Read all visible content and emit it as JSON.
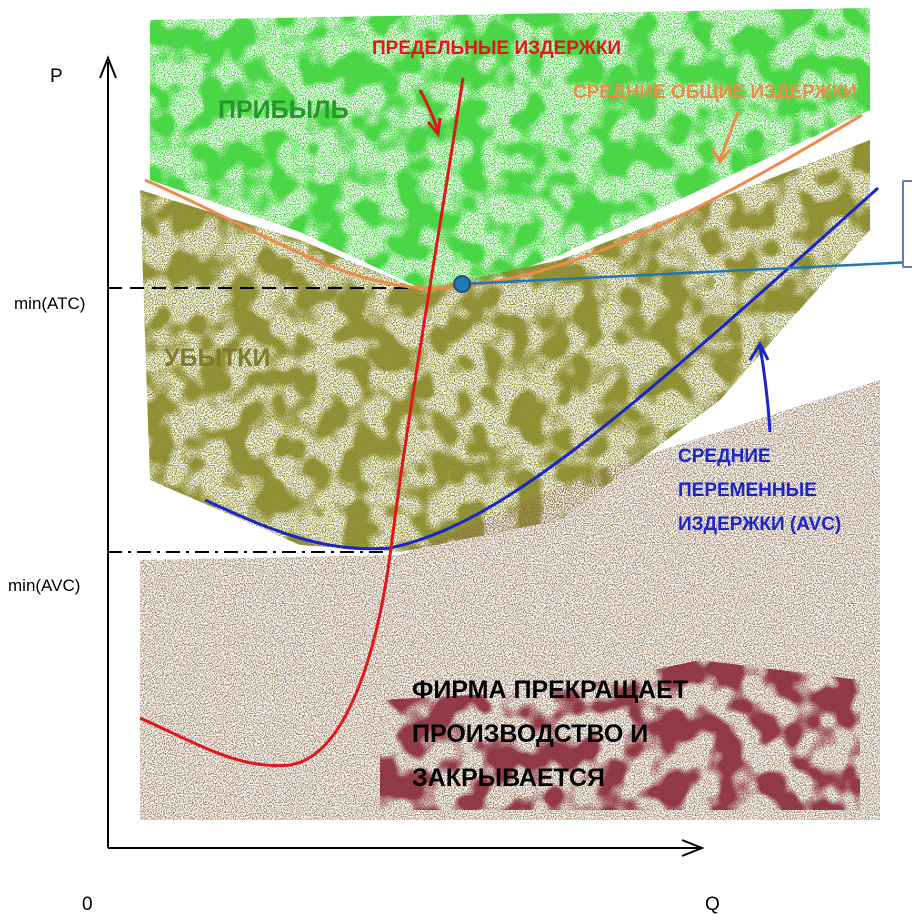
{
  "axes": {
    "y_label": "P",
    "x_label": "Q",
    "origin_label": "0"
  },
  "ticks": {
    "min_atc": "min(ATC)",
    "min_avc": "min(AVC)"
  },
  "curves": {
    "mc": {
      "label": "ПРЕДЕЛЬНЫЕ ИЗДЕРЖКИ",
      "color": "#e0171c"
    },
    "atc": {
      "label": "СРЕДНИЕ ОБЩИЕ ИЗДЕРЖКИ",
      "color": "#ee8a4a"
    },
    "avc": {
      "label": "СРЕДНИЕ\nПЕРЕМЕННЫЕ\nИЗДЕРЖКИ (AVC)",
      "color": "#1c25c8"
    }
  },
  "regions": {
    "profit": {
      "label": "ПРИБЫЛЬ",
      "color": "#24982a",
      "fill": "#3fd43a"
    },
    "losses": {
      "label": "УБЫТКИ",
      "color": "#807a2c",
      "fill": "#8a8a2a"
    },
    "shutdown": {
      "label": "ФИРМА ПРЕКРАЩАЕТ\nПРОИЗВОДСТВО И\nЗАКРЫВАЕТСЯ",
      "color": "#000000",
      "fill": "#8a6a4a",
      "fill_dark": "#8a2a3a"
    }
  },
  "callout": {
    "color": "#1f77b4"
  }
}
